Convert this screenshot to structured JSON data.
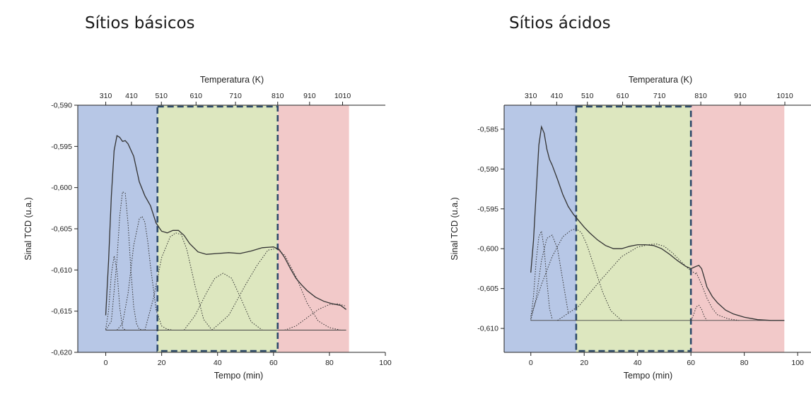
{
  "chart_data": [
    {
      "type": "line",
      "title": "Sítios básicos",
      "xlabel": "Tempo (min)",
      "ylabel": "Sinal TCD (u.a.)",
      "x2label": "Temperatura (K)",
      "xlim": [
        -10,
        100
      ],
      "ylim": [
        -0.62,
        -0.59
      ],
      "x_ticks": [
        0,
        20,
        40,
        60,
        80,
        100
      ],
      "y_ticks": [
        -0.62,
        -0.615,
        -0.61,
        -0.605,
        -0.6,
        -0.595,
        -0.59
      ],
      "y_tick_labels": [
        "-0,620",
        "-0,615",
        "-0,610",
        "-0,605",
        "-0,600",
        "-0,595",
        "-0,590"
      ],
      "top_ticks": [
        {
          "label": "310",
          "x": 0
        },
        {
          "label": "410",
          "x": 9.2
        },
        {
          "label": "510",
          "x": 19.9
        },
        {
          "label": "610",
          "x": 32.3
        },
        {
          "label": "710",
          "x": 46.4
        },
        {
          "label": "810",
          "x": 61.5
        },
        {
          "label": "910",
          "x": 72.9
        },
        {
          "label": "1010",
          "x": 84.7
        }
      ],
      "regions": [
        {
          "name": "blue",
          "x0": -10,
          "x1": 18.5,
          "color": "#b7c7e6"
        },
        {
          "name": "green",
          "x0": 18.5,
          "x1": 61.5,
          "color": "#dde7bf"
        },
        {
          "name": "red",
          "x0": 61.5,
          "x1": 87,
          "color": "#f2c9c9"
        }
      ],
      "dashed_box": {
        "x0": 18.5,
        "x1": 61.5,
        "color": "#2e4a6b"
      },
      "series": [
        {
          "style": "solid",
          "x": [
            0,
            1,
            2,
            3,
            4,
            5,
            6,
            7,
            8,
            10,
            12,
            14,
            16,
            18,
            20,
            22,
            24,
            26,
            28,
            30,
            33,
            36,
            40,
            44,
            48,
            52,
            56,
            60,
            62,
            64,
            66,
            68,
            70,
            72,
            75,
            78,
            81,
            84,
            86
          ],
          "y": [
            -0.6155,
            -0.609,
            -0.601,
            -0.5955,
            -0.5937,
            -0.5939,
            -0.5944,
            -0.5943,
            -0.5947,
            -0.5962,
            -0.5993,
            -0.601,
            -0.6022,
            -0.6043,
            -0.6053,
            -0.6055,
            -0.6052,
            -0.6052,
            -0.6058,
            -0.6068,
            -0.6078,
            -0.6081,
            -0.608,
            -0.6079,
            -0.608,
            -0.6077,
            -0.6073,
            -0.6072,
            -0.6075,
            -0.6085,
            -0.6098,
            -0.611,
            -0.6118,
            -0.6125,
            -0.6133,
            -0.6138,
            -0.6141,
            -0.6143,
            -0.6148
          ]
        },
        {
          "style": "dotted",
          "x": [
            0,
            1,
            2,
            3,
            4,
            5,
            6,
            7,
            8
          ],
          "y": [
            -0.6172,
            -0.615,
            -0.6105,
            -0.6083,
            -0.61,
            -0.6145,
            -0.617,
            -0.6173,
            -0.6173
          ]
        },
        {
          "style": "dotted",
          "x": [
            0,
            2,
            4,
            5,
            6,
            7,
            8,
            9,
            10,
            11,
            12,
            14
          ],
          "y": [
            -0.6173,
            -0.6162,
            -0.6088,
            -0.6035,
            -0.6005,
            -0.6007,
            -0.6045,
            -0.61,
            -0.6145,
            -0.6165,
            -0.6172,
            -0.6173
          ]
        },
        {
          "style": "dotted",
          "x": [
            4,
            6,
            8,
            10,
            12,
            13,
            14,
            15,
            16,
            18,
            20,
            22,
            24
          ],
          "y": [
            -0.6173,
            -0.6165,
            -0.6128,
            -0.607,
            -0.6038,
            -0.6035,
            -0.6042,
            -0.6065,
            -0.6095,
            -0.6148,
            -0.6168,
            -0.6172,
            -0.6173
          ]
        },
        {
          "style": "dotted",
          "x": [
            14,
            17,
            20,
            23,
            25,
            27,
            29,
            32,
            35,
            38
          ],
          "y": [
            -0.6173,
            -0.6135,
            -0.6085,
            -0.606,
            -0.6055,
            -0.6057,
            -0.6075,
            -0.612,
            -0.616,
            -0.6173
          ]
        },
        {
          "style": "dotted",
          "x": [
            28,
            32,
            36,
            39,
            42,
            45,
            48,
            52,
            56
          ],
          "y": [
            -0.6173,
            -0.6155,
            -0.6128,
            -0.611,
            -0.6104,
            -0.611,
            -0.6132,
            -0.6163,
            -0.6173
          ]
        },
        {
          "style": "dotted",
          "x": [
            38,
            44,
            50,
            54,
            58,
            61,
            64,
            68,
            72,
            76,
            80,
            84
          ],
          "y": [
            -0.6173,
            -0.6155,
            -0.6118,
            -0.6095,
            -0.6076,
            -0.6074,
            -0.6082,
            -0.6108,
            -0.614,
            -0.6162,
            -0.617,
            -0.6173
          ]
        },
        {
          "style": "dotted",
          "x": [
            64,
            68,
            72,
            76,
            80,
            83,
            86
          ],
          "y": [
            -0.6173,
            -0.6168,
            -0.6158,
            -0.6148,
            -0.6142,
            -0.6141,
            -0.6144
          ]
        },
        {
          "style": "solid-thin",
          "x": [
            0,
            86
          ],
          "y": [
            -0.6173,
            -0.6173
          ]
        }
      ]
    },
    {
      "type": "line",
      "title": "Sítios ácidos",
      "xlabel": "Tempo (min)",
      "ylabel": "Sinal TCD (u.a.)",
      "x2label": "Temperatura (K)",
      "xlim": [
        -10,
        105
      ],
      "ylim": [
        -0.613,
        -0.582
      ],
      "x_ticks": [
        0,
        20,
        40,
        60,
        80,
        100
      ],
      "y_ticks": [
        -0.61,
        -0.605,
        -0.6,
        -0.595,
        -0.59,
        -0.585
      ],
      "y_tick_labels": [
        "-0,610",
        "-0,605",
        "-0,600",
        "-0,595",
        "-0,590",
        "-0,585"
      ],
      "top_ticks": [
        {
          "label": "310",
          "x": 0
        },
        {
          "label": "410",
          "x": 9.7
        },
        {
          "label": "510",
          "x": 21.2
        },
        {
          "label": "610",
          "x": 34.4
        },
        {
          "label": "710",
          "x": 48.2
        },
        {
          "label": "810",
          "x": 63.7
        },
        {
          "label": "910",
          "x": 78.5
        },
        {
          "label": "1010",
          "x": 95.2
        }
      ],
      "regions": [
        {
          "name": "blue",
          "x0": -10,
          "x1": 17,
          "color": "#b7c7e6"
        },
        {
          "name": "green",
          "x0": 17,
          "x1": 60,
          "color": "#dde7bf"
        },
        {
          "name": "red",
          "x0": 60,
          "x1": 95,
          "color": "#f2c9c9"
        }
      ],
      "dashed_box": {
        "x0": 17,
        "x1": 60,
        "color": "#2e4a6b"
      },
      "series": [
        {
          "style": "solid",
          "x": [
            0,
            1,
            2,
            3,
            4,
            5,
            6,
            7,
            8,
            10,
            12,
            14,
            16,
            18,
            20,
            22,
            25,
            28,
            31,
            34,
            37,
            40,
            43,
            46,
            49,
            52,
            55,
            58,
            60,
            62,
            63,
            64,
            65,
            66,
            68,
            70,
            73,
            76,
            80,
            85,
            90,
            95
          ],
          "y": [
            -0.603,
            -0.599,
            -0.593,
            -0.587,
            -0.5847,
            -0.5855,
            -0.5875,
            -0.5888,
            -0.5895,
            -0.5913,
            -0.5932,
            -0.5947,
            -0.5957,
            -0.5965,
            -0.5973,
            -0.598,
            -0.5989,
            -0.5996,
            -0.6,
            -0.6,
            -0.5997,
            -0.5995,
            -0.5995,
            -0.5996,
            -0.6,
            -0.6007,
            -0.6015,
            -0.6022,
            -0.6025,
            -0.6022,
            -0.6021,
            -0.6025,
            -0.6036,
            -0.6048,
            -0.606,
            -0.6068,
            -0.6077,
            -0.6082,
            -0.6086,
            -0.6089,
            -0.609,
            -0.609
          ]
        },
        {
          "style": "dotted",
          "x": [
            0,
            1,
            2,
            3,
            4,
            5,
            6,
            7,
            8
          ],
          "y": [
            -0.6088,
            -0.606,
            -0.6015,
            -0.5985,
            -0.5978,
            -0.6,
            -0.604,
            -0.6075,
            -0.6088
          ]
        },
        {
          "style": "dotted",
          "x": [
            0,
            2,
            4,
            6,
            8,
            10,
            12,
            14
          ],
          "y": [
            -0.609,
            -0.6062,
            -0.6015,
            -0.5987,
            -0.5983,
            -0.6,
            -0.604,
            -0.608
          ]
        },
        {
          "style": "dotted",
          "x": [
            0,
            4,
            8,
            12,
            15,
            17,
            19,
            21,
            24,
            27,
            30,
            34
          ],
          "y": [
            -0.6085,
            -0.6045,
            -0.601,
            -0.5985,
            -0.5977,
            -0.5975,
            -0.598,
            -0.5995,
            -0.6025,
            -0.6055,
            -0.6078,
            -0.609
          ]
        },
        {
          "style": "dotted",
          "x": [
            10,
            18,
            26,
            34,
            40,
            44,
            47,
            50,
            53,
            56,
            59,
            62
          ],
          "y": [
            -0.609,
            -0.6072,
            -0.604,
            -0.601,
            -0.5998,
            -0.5995,
            -0.5994,
            -0.5997,
            -0.6005,
            -0.6015,
            -0.6025,
            -0.6032
          ]
        },
        {
          "style": "dotted",
          "x": [
            60,
            61,
            62,
            63,
            64,
            65,
            66
          ],
          "y": [
            -0.609,
            -0.6083,
            -0.6073,
            -0.6071,
            -0.6076,
            -0.6085,
            -0.609
          ]
        },
        {
          "style": "dotted",
          "x": [
            62,
            64,
            66,
            68,
            70,
            74,
            78
          ],
          "y": [
            -0.603,
            -0.6045,
            -0.6062,
            -0.6075,
            -0.6083,
            -0.6088,
            -0.609
          ]
        },
        {
          "style": "solid-thin",
          "x": [
            0,
            95
          ],
          "y": [
            -0.609,
            -0.609
          ]
        }
      ]
    }
  ]
}
